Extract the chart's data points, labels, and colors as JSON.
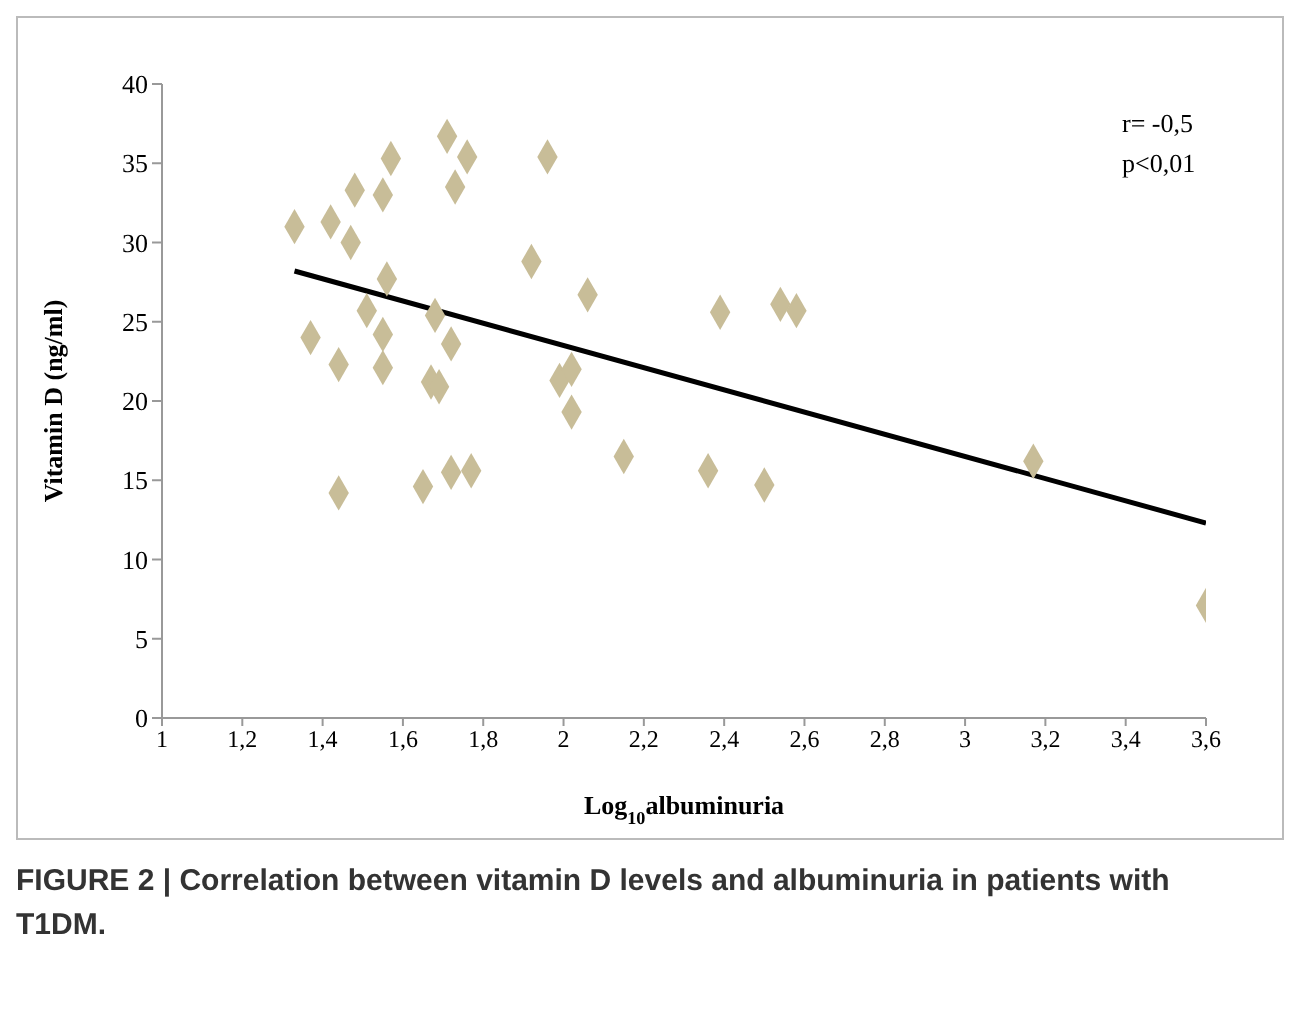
{
  "chart_data": {
    "type": "scatter",
    "xlabel": "Log$_{10}$albuminuria",
    "ylabel": "Vitamin D (ng/ml)",
    "xlim": [
      1,
      3.6
    ],
    "xticks": [
      1,
      {
        "value": 1.2,
        "label": "1,2"
      },
      {
        "value": 1.4,
        "label": "1,4"
      },
      {
        "value": 1.6,
        "label": "1,6"
      },
      {
        "value": 1.8,
        "label": "1,8"
      },
      2,
      {
        "value": 2.2,
        "label": "2,2"
      },
      {
        "value": 2.4,
        "label": "2,4"
      },
      {
        "value": 2.6,
        "label": "2,6"
      },
      {
        "value": 2.8,
        "label": "2,8"
      },
      3,
      {
        "value": 3.2,
        "label": "3,2"
      },
      {
        "value": 3.4,
        "label": "3,4"
      },
      {
        "value": 3.6,
        "label": "3,6"
      }
    ],
    "ylim": [
      0,
      40
    ],
    "yticks": [
      0,
      5,
      10,
      15,
      20,
      25,
      30,
      35,
      40
    ],
    "grid": false,
    "legend": false,
    "marker": "diamond",
    "annotations": [
      "r= -0,5",
      "p<0,01",
      "FIGURE 2 | Correlation between vitamin D levels and albuminuria in patients with T1DM."
    ],
    "series": [
      {
        "color": "#c8bd98",
        "x": [
          1.33,
          1.37,
          1.42,
          1.44,
          1.44,
          1.47,
          1.48,
          1.51,
          1.55,
          1.55,
          1.55,
          1.56,
          1.57,
          1.65,
          1.67,
          1.68,
          1.69,
          1.71,
          1.72,
          1.72,
          1.73,
          1.76,
          1.77,
          1.92,
          1.96,
          1.99,
          2.02,
          2.02,
          2.06,
          2.15,
          2.36,
          2.39,
          2.5,
          2.54,
          2.58,
          3.17,
          3.6
        ],
        "values": [
          31,
          24,
          31.3,
          22.3,
          14.2,
          30,
          33.3,
          25.7,
          24.2,
          22.1,
          33,
          27.7,
          35.3,
          14.6,
          21.2,
          25.4,
          20.9,
          36.7,
          23.6,
          15.5,
          33.5,
          35.4,
          15.6,
          28.8,
          35.4,
          21.3,
          22,
          19.3,
          26.7,
          16.5,
          15.6,
          25.6,
          14.7,
          26.1,
          25.7,
          16.2,
          7.1
        ]
      },
      {
        "type": "line",
        "color": "#000000",
        "marker": "none",
        "x": [
          1.33,
          3.6
        ],
        "values": [
          28.2,
          12.3
        ]
      }
    ]
  }
}
